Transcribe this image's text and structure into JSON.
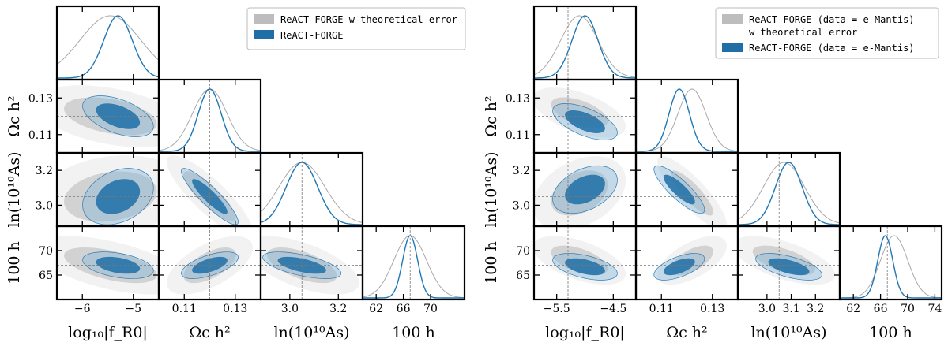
{
  "chart_data": [
    {
      "type": "corner",
      "name": "left",
      "legend": [
        {
          "label": "ReACT-FORGE w theoretical error",
          "color": "#b8b8b8"
        },
        {
          "label": "ReACT-FORGE",
          "color": "#1f77b4"
        }
      ],
      "params": [
        {
          "label": "log₁₀|f_R0|",
          "fiducial": -5.3,
          "range": [
            -6.5,
            -4.5
          ],
          "ticks": [
            -6,
            -5
          ],
          "tick_labels": [
            "−6",
            "−5"
          ]
        },
        {
          "label": "Ωc h²",
          "fiducial": 0.12,
          "range": [
            0.1,
            0.14
          ],
          "ticks": [
            0.11,
            0.13
          ],
          "tick_labels": [
            "0.11",
            "0.13"
          ]
        },
        {
          "label": "ln(10¹⁰As)",
          "fiducial": 3.05,
          "range": [
            2.88,
            3.3
          ],
          "ticks": [
            3.0,
            3.2
          ],
          "tick_labels": [
            "3.0",
            "3.2"
          ]
        },
        {
          "label": "100 h",
          "fiducial": 67,
          "range": [
            60,
            75
          ],
          "ticks": [
            65,
            70
          ],
          "tick_labels": [
            "65",
            "70"
          ]
        }
      ],
      "x_axis_ticks": [
        {
          "ticks": [
            -6,
            -5
          ],
          "tick_labels": [
            "−6",
            "−5"
          ]
        },
        {
          "ticks": [
            0.11,
            0.13
          ],
          "tick_labels": [
            "0.11",
            "0.13"
          ]
        },
        {
          "ticks": [
            3.0,
            3.2
          ],
          "tick_labels": [
            "3.0",
            "3.2"
          ]
        },
        {
          "ticks": [
            62,
            66,
            70
          ],
          "tick_labels": [
            "62",
            "66",
            "70"
          ]
        }
      ],
      "series": [
        {
          "name": "ReACT-FORGE w theoretical error",
          "color": "#b0b0b0",
          "means": [
            -5.45,
            0.12,
            3.05,
            67.0
          ],
          "sigmas": [
            0.6,
            0.0068,
            0.095,
            2.4
          ],
          "corr": [
            [
              1,
              -0.4,
              0.2,
              -0.55
            ],
            [
              -0.4,
              1,
              -0.85,
              0.6
            ],
            [
              0.2,
              -0.85,
              1,
              -0.6
            ],
            [
              -0.55,
              0.6,
              -0.6,
              1
            ]
          ]
        },
        {
          "name": "ReACT-FORGE",
          "color": "#1f77b4",
          "means": [
            -5.3,
            0.12,
            3.05,
            67.0
          ],
          "sigmas": [
            0.28,
            0.0045,
            0.065,
            1.1
          ],
          "corr": [
            [
              1,
              -0.5,
              0.3,
              -0.4
            ],
            [
              -0.5,
              1,
              -0.9,
              0.6
            ],
            [
              0.3,
              -0.9,
              1,
              -0.6
            ],
            [
              -0.4,
              0.6,
              -0.6,
              1
            ]
          ]
        }
      ]
    },
    {
      "type": "corner",
      "name": "right",
      "legend": [
        {
          "label": "ReACT-FORGE (data = e-Mantis)",
          "label2": "w theoretical error",
          "color": "#b8b8b8"
        },
        {
          "label": "ReACT-FORGE (data = e-Mantis)",
          "color": "#1f77b4"
        }
      ],
      "params": [
        {
          "label": "log₁₀|f_R0|",
          "fiducial": -5.3,
          "range": [
            -5.9,
            -4.1
          ],
          "ticks": [
            -5.5,
            -4.5
          ],
          "tick_labels": [
            "−5.5",
            "−4.5"
          ]
        },
        {
          "label": "Ωc h²",
          "fiducial": 0.12,
          "range": [
            0.1,
            0.14
          ],
          "ticks": [
            0.11,
            0.13
          ],
          "tick_labels": [
            "0.11",
            "0.13"
          ]
        },
        {
          "label": "ln(10¹⁰As)",
          "fiducial": 3.05,
          "range": [
            2.88,
            3.3
          ],
          "ticks": [
            3.0,
            3.2
          ],
          "tick_labels": [
            "3.0",
            "3.2"
          ]
        },
        {
          "label": "100 h",
          "fiducial": 67,
          "range": [
            60,
            75
          ],
          "ticks": [
            65,
            70
          ],
          "tick_labels": [
            "65",
            "70"
          ]
        }
      ],
      "x_axis_ticks": [
        {
          "ticks": [
            -5.5,
            -4.5
          ],
          "tick_labels": [
            "−5.5",
            "−4.5"
          ]
        },
        {
          "ticks": [
            0.11,
            0.13
          ],
          "tick_labels": [
            "0.11",
            "0.13"
          ]
        },
        {
          "ticks": [
            3.0,
            3.1,
            3.2
          ],
          "tick_labels": [
            "3.0",
            "3.1",
            "3.2"
          ]
        },
        {
          "ticks": [
            62,
            66,
            70,
            74
          ],
          "tick_labels": [
            "62",
            "66",
            "70",
            "74"
          ]
        }
      ],
      "series": [
        {
          "name": "ReACT-FORGE (data = e-Mantis) w theoretical error",
          "color": "#b0b0b0",
          "means": [
            -5.1,
            0.122,
            3.07,
            68.0
          ],
          "sigmas": [
            0.33,
            0.0055,
            0.085,
            2.0
          ],
          "corr": [
            [
              1,
              -0.55,
              0.35,
              -0.55
            ],
            [
              -0.55,
              1,
              -0.85,
              0.6
            ],
            [
              0.35,
              -0.85,
              1,
              -0.6
            ],
            [
              -0.55,
              0.6,
              -0.6,
              1
            ]
          ]
        },
        {
          "name": "ReACT-FORGE (data = e-Mantis)",
          "color": "#1f77b4",
          "means": [
            -5.0,
            0.117,
            3.09,
            66.7
          ],
          "sigmas": [
            0.23,
            0.004,
            0.055,
            1.1
          ],
          "corr": [
            [
              1,
              -0.6,
              0.4,
              -0.5
            ],
            [
              -0.6,
              1,
              -0.85,
              0.6
            ],
            [
              0.4,
              -0.85,
              1,
              -0.6
            ],
            [
              -0.5,
              0.6,
              -0.6,
              1
            ]
          ]
        }
      ]
    }
  ]
}
